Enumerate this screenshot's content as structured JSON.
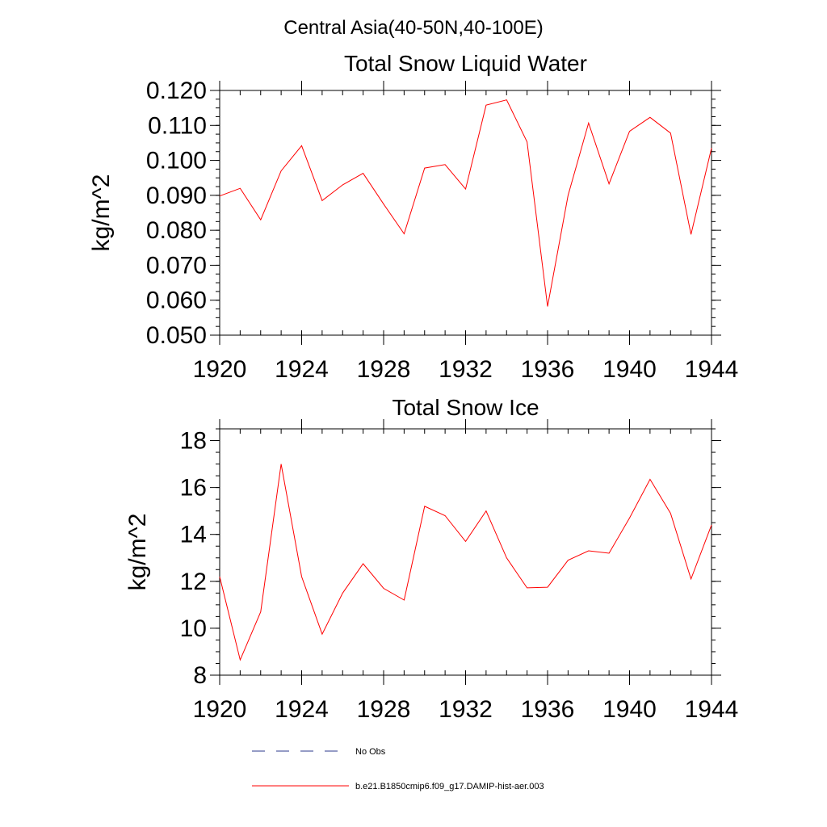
{
  "figure": {
    "suptitle": "Central Asia(40-50N,40-100E)"
  },
  "legend": {
    "entries": [
      {
        "label": "No Obs",
        "color": "#2b3a8c",
        "dash": true
      },
      {
        "label": "b.e21.B1850cmip6.f09_g17.DAMIP-hist-aer.003",
        "color": "#ff0000",
        "dash": false
      }
    ]
  },
  "chart_data": [
    {
      "type": "line",
      "title": "Total Snow Liquid Water",
      "xlabel": "",
      "ylabel": "kg/m^2",
      "xlim": [
        1920,
        1944
      ],
      "ylim": [
        0.05,
        0.12
      ],
      "xticks": [
        1920,
        1924,
        1928,
        1932,
        1936,
        1940,
        1944
      ],
      "yticks": [
        0.05,
        0.06,
        0.07,
        0.08,
        0.09,
        0.1,
        0.11,
        0.12
      ],
      "ytick_labels": [
        "0.050",
        "0.060",
        "0.070",
        "0.080",
        "0.090",
        "0.100",
        "0.110",
        "0.120"
      ],
      "yminor_step": 0.0025,
      "grid": false,
      "x": [
        1920,
        1921,
        1922,
        1923,
        1924,
        1925,
        1926,
        1927,
        1928,
        1929,
        1930,
        1931,
        1932,
        1933,
        1934,
        1935,
        1936,
        1937,
        1938,
        1939,
        1940,
        1941,
        1942,
        1943,
        1944
      ],
      "series": [
        {
          "name": "b.e21.B1850cmip6.f09_g17.DAMIP-hist-aer.003",
          "color": "#ff0000",
          "values": [
            0.0898,
            0.092,
            0.083,
            0.097,
            0.1042,
            0.0885,
            0.093,
            0.0963,
            0.0875,
            0.079,
            0.0978,
            0.0988,
            0.0918,
            0.1158,
            0.1173,
            0.1053,
            0.0582,
            0.09,
            0.1107,
            0.0933,
            0.1083,
            0.1123,
            0.1078,
            0.0788,
            0.1035
          ]
        }
      ]
    },
    {
      "type": "line",
      "title": "Total Snow Ice",
      "xlabel": "",
      "ylabel": "kg/m^2",
      "xlim": [
        1920,
        1944
      ],
      "ylim": [
        8,
        18.5
      ],
      "xticks": [
        1920,
        1924,
        1928,
        1932,
        1936,
        1940,
        1944
      ],
      "yticks": [
        8,
        10,
        12,
        14,
        16,
        18
      ],
      "ytick_labels": [
        "8",
        "10",
        "12",
        "14",
        "16",
        "18"
      ],
      "yminor_step": 0.5,
      "grid": false,
      "x": [
        1920,
        1921,
        1922,
        1923,
        1924,
        1925,
        1926,
        1927,
        1928,
        1929,
        1930,
        1931,
        1932,
        1933,
        1934,
        1935,
        1936,
        1937,
        1938,
        1939,
        1940,
        1941,
        1942,
        1943,
        1944
      ],
      "series": [
        {
          "name": "b.e21.B1850cmip6.f09_g17.DAMIP-hist-aer.003",
          "color": "#ff0000",
          "values": [
            12.2,
            8.65,
            10.7,
            17.0,
            12.2,
            9.75,
            11.5,
            12.75,
            11.7,
            11.2,
            15.2,
            14.8,
            13.7,
            15.0,
            13.0,
            11.72,
            11.75,
            12.9,
            13.3,
            13.2,
            14.7,
            16.35,
            14.9,
            12.1,
            14.4
          ]
        }
      ]
    }
  ]
}
